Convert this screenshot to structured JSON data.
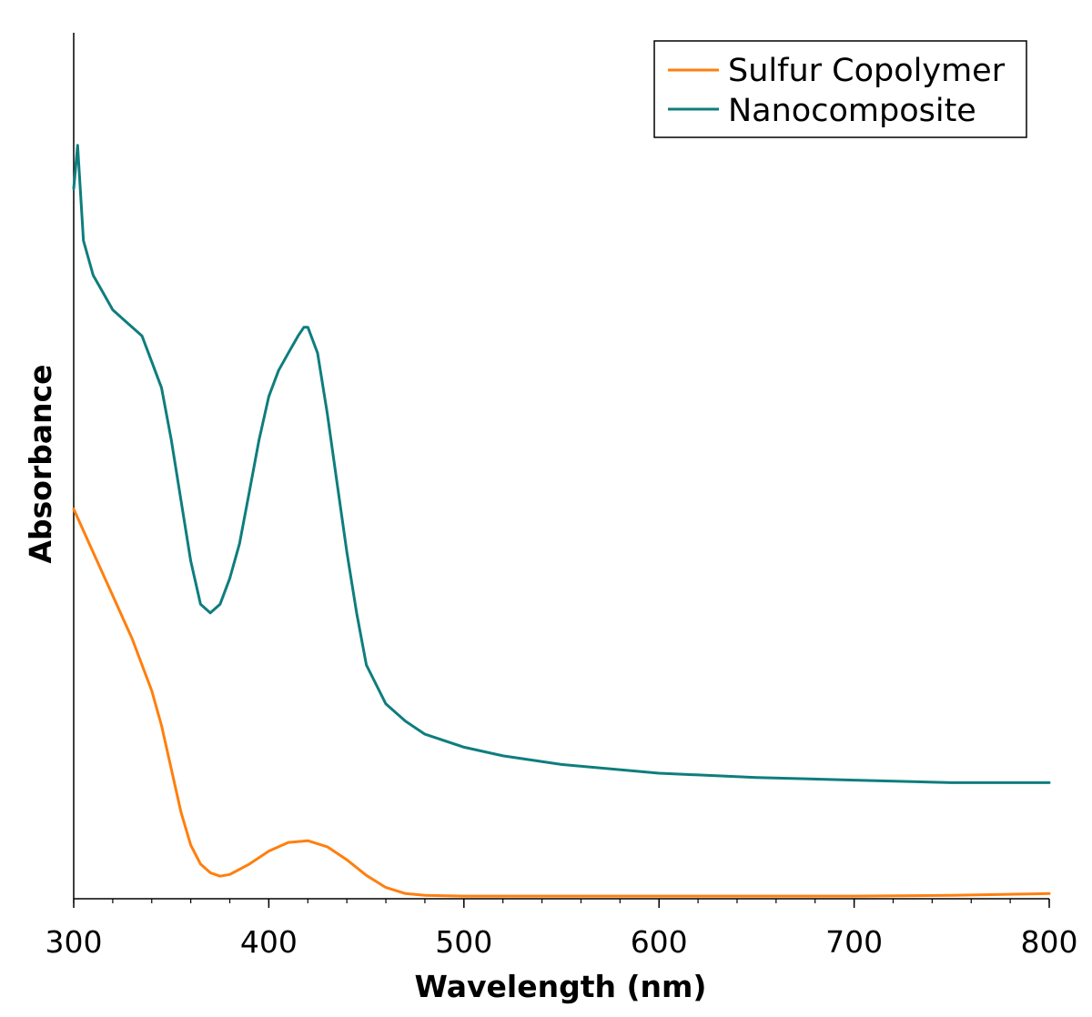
{
  "chart_data": {
    "type": "line",
    "title": "",
    "xlabel": "Wavelength (nm)",
    "ylabel": "Absorbance",
    "xlim": [
      300,
      800
    ],
    "ylim": [
      0,
      1.0
    ],
    "x_ticks": [
      300,
      400,
      500,
      600,
      700,
      800
    ],
    "x_tick_labels": [
      "300",
      "400",
      "500",
      "600",
      "700",
      "800"
    ],
    "y_tick_labels_shown": false,
    "grid": false,
    "legend": "top-right",
    "series": [
      {
        "name": "Sulfur Copolymer",
        "color": "#ff7f0e",
        "x": [
          300,
          310,
          320,
          330,
          340,
          345,
          350,
          355,
          360,
          365,
          370,
          375,
          380,
          390,
          400,
          410,
          420,
          430,
          440,
          450,
          460,
          470,
          480,
          500,
          550,
          600,
          650,
          700,
          750,
          800
        ],
        "y": [
          0.45,
          0.4,
          0.35,
          0.3,
          0.24,
          0.2,
          0.15,
          0.1,
          0.062,
          0.04,
          0.03,
          0.026,
          0.028,
          0.04,
          0.055,
          0.065,
          0.067,
          0.06,
          0.045,
          0.027,
          0.013,
          0.006,
          0.004,
          0.003,
          0.003,
          0.003,
          0.003,
          0.003,
          0.004,
          0.006
        ]
      },
      {
        "name": "Nanocomposite",
        "color": "#0f7d7e",
        "x": [
          300,
          302,
          305,
          310,
          315,
          320,
          325,
          330,
          335,
          340,
          345,
          350,
          355,
          360,
          365,
          370,
          375,
          380,
          385,
          390,
          395,
          400,
          405,
          410,
          415,
          418,
          420,
          425,
          430,
          435,
          440,
          445,
          450,
          460,
          470,
          480,
          500,
          520,
          550,
          600,
          650,
          700,
          750,
          800
        ],
        "y": [
          0.82,
          0.87,
          0.76,
          0.72,
          0.7,
          0.68,
          0.67,
          0.66,
          0.65,
          0.62,
          0.59,
          0.53,
          0.46,
          0.39,
          0.34,
          0.33,
          0.34,
          0.37,
          0.41,
          0.47,
          0.53,
          0.58,
          0.61,
          0.63,
          0.65,
          0.66,
          0.66,
          0.63,
          0.56,
          0.48,
          0.4,
          0.33,
          0.27,
          0.225,
          0.205,
          0.19,
          0.175,
          0.165,
          0.155,
          0.145,
          0.14,
          0.137,
          0.134,
          0.134
        ]
      }
    ]
  }
}
